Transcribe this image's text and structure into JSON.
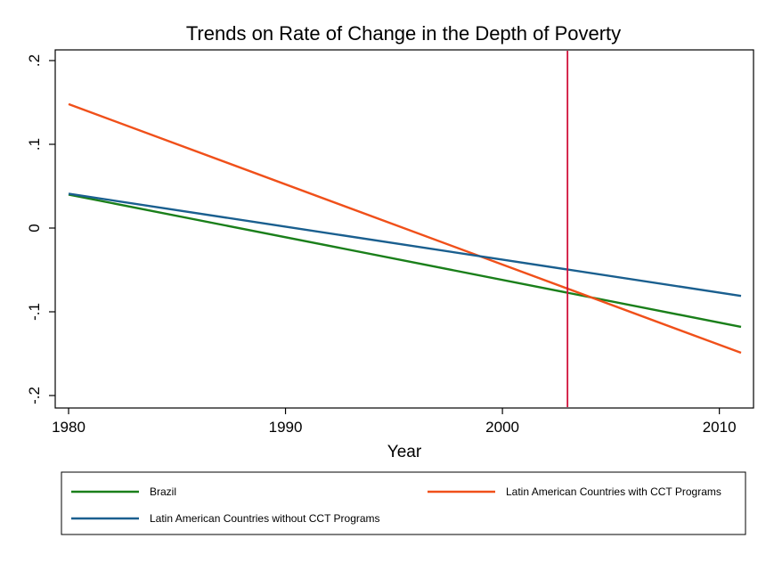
{
  "chart_data": {
    "type": "line",
    "title": "Trends on Rate of Change in the Depth of Poverty",
    "xlabel": "Year",
    "ylabel": "",
    "xlim": [
      1980,
      2011
    ],
    "ylim": [
      -0.2,
      0.2
    ],
    "x_ticks": [
      1980,
      1990,
      2000,
      2010
    ],
    "x_tick_labels": [
      "1980",
      "1990",
      "2000",
      "2010"
    ],
    "y_ticks": [
      -0.2,
      -0.1,
      0,
      0.1,
      0.2
    ],
    "y_tick_labels": [
      "-.2",
      "-.1",
      "0",
      ".1",
      ".2"
    ],
    "reference_line_x": 2003,
    "reference_line_color": "#d0103a",
    "grid": false,
    "legend_position": "bottom",
    "series": [
      {
        "name": "Brazil",
        "color": "#1a7f1a",
        "x": [
          1980,
          2011
        ],
        "y": [
          0.04,
          -0.118
        ]
      },
      {
        "name": "Latin American Countries with CCT Programs",
        "color": "#f0501a",
        "x": [
          1980,
          2011
        ],
        "y": [
          0.148,
          -0.149
        ]
      },
      {
        "name": "Latin American Countries without CCT Programs",
        "color": "#1a5f8f",
        "x": [
          1980,
          2011
        ],
        "y": [
          0.041,
          -0.081
        ]
      }
    ]
  }
}
